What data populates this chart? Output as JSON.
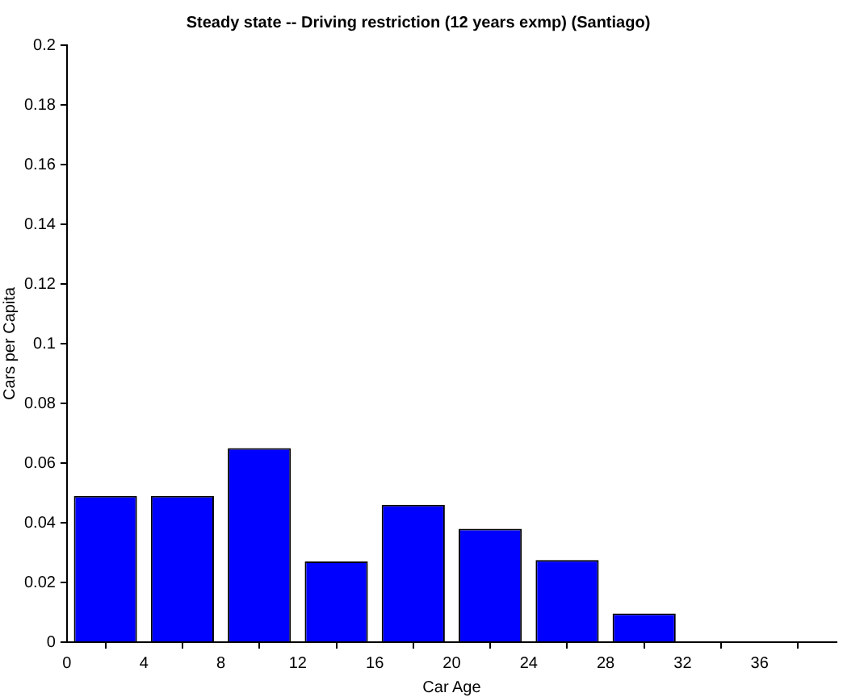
{
  "chart_data": {
    "type": "bar",
    "title": "Steady state -- Driving restriction (12 years exmp) (Santiago)",
    "xlabel": "Car Age",
    "ylabel": "Cars per Capita",
    "x": [
      2,
      6,
      10,
      14,
      18,
      22,
      26,
      30
    ],
    "values": [
      0.049,
      0.049,
      0.065,
      0.027,
      0.046,
      0.038,
      0.0275,
      0.0096
    ],
    "color": "#0000ff",
    "xlim": [
      0,
      40
    ],
    "xticks": [
      0,
      4,
      8,
      12,
      16,
      20,
      24,
      28,
      32,
      36
    ],
    "ylim": [
      0,
      0.2
    ],
    "yticks": [
      0,
      0.02,
      0.04,
      0.06,
      0.08,
      0.1,
      0.12,
      0.14,
      0.16,
      0.18,
      0.2
    ],
    "grid": false,
    "legend": false
  }
}
